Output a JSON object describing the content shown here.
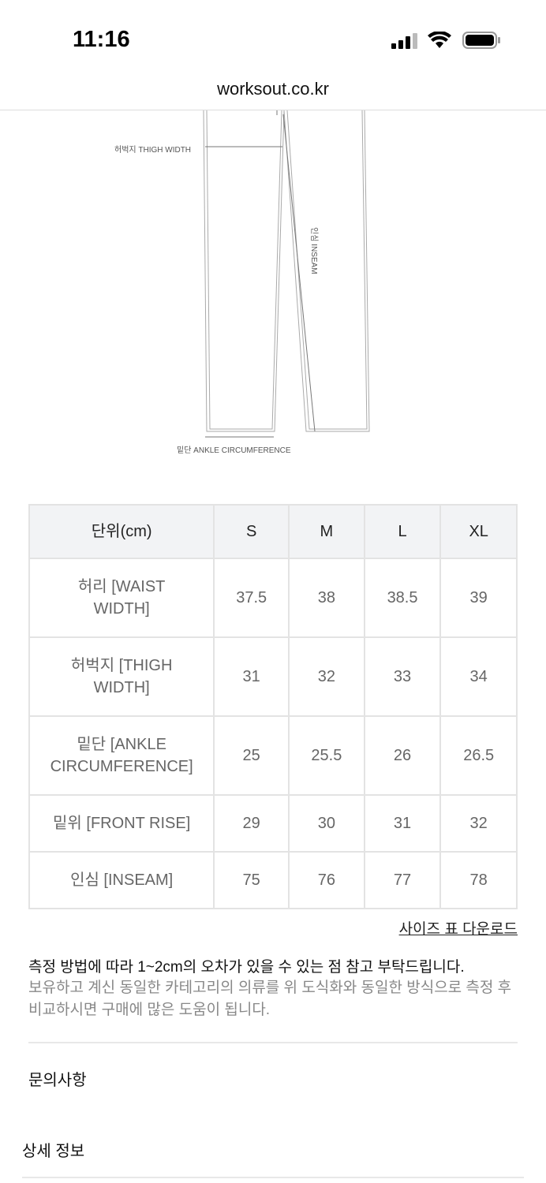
{
  "status_bar": {
    "time": "11:16"
  },
  "browser": {
    "url": "worksout.co.kr"
  },
  "diagram": {
    "thigh_label": "허벅지 THIGH WIDTH",
    "inseam_label": "인심 INSEAM",
    "ankle_label": "밑단 ANKLE CIRCUMFERENCE"
  },
  "size_table": {
    "headers": [
      "단위(cm)",
      "S",
      "M",
      "L",
      "XL"
    ],
    "rows": [
      {
        "label": "허리 [WAIST WIDTH]",
        "values": [
          "37.5",
          "38",
          "38.5",
          "39"
        ]
      },
      {
        "label": "허벅지 [THIGH WIDTH]",
        "values": [
          "31",
          "32",
          "33",
          "34"
        ]
      },
      {
        "label": "밑단 [ANKLE CIRCUMFERENCE]",
        "values": [
          "25",
          "25.5",
          "26",
          "26.5"
        ]
      },
      {
        "label": "밑위 [FRONT RISE]",
        "values": [
          "29",
          "30",
          "31",
          "32"
        ]
      },
      {
        "label": "인심 [INSEAM]",
        "values": [
          "75",
          "76",
          "77",
          "78"
        ]
      }
    ]
  },
  "download_link": "사이즈 표 다운로드",
  "note_primary": "측정 방법에 따라 1~2cm의 오차가 있을 수 있는 점 참고 부탁드립니다.",
  "note_secondary": "보유하고 계신 동일한 카테고리의 의류를 위 도식화와 동일한 방식으로 측정 후 비교하시면 구매에 많은 도움이 됩니다.",
  "sections": {
    "inquiry": "문의사항",
    "details": "상세 정보"
  }
}
